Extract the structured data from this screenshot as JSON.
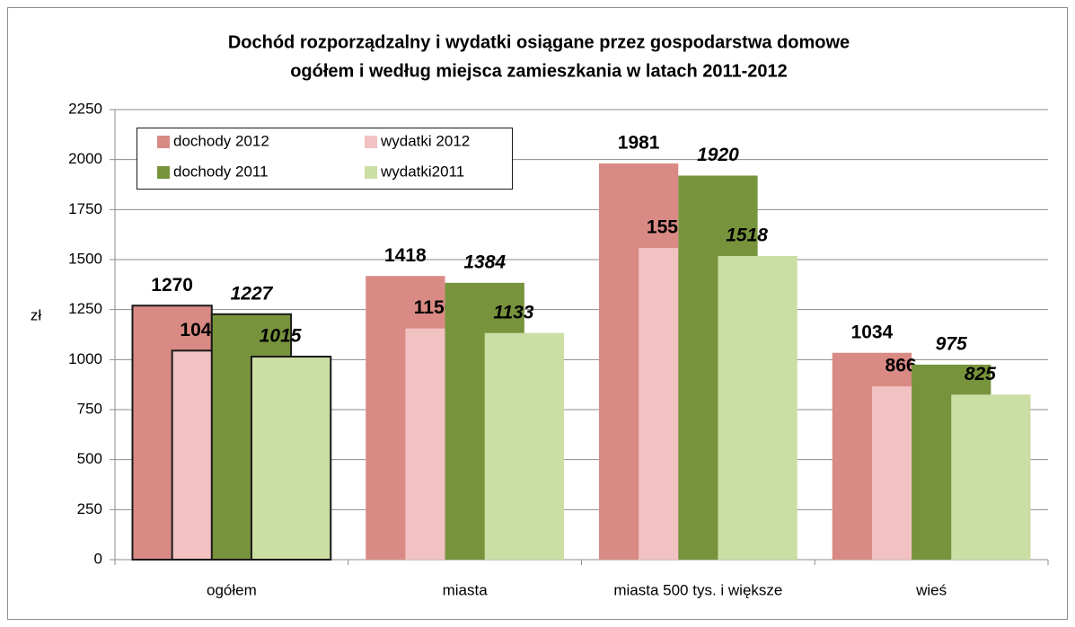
{
  "chart_data": {
    "type": "bar",
    "title": [
      "Dochód rozporządzalny i wydatki osiągane przez gospodarstwa domowe",
      "ogółem i według miejsca zamieszkania  w latach 2011-2012"
    ],
    "y_label": "zł",
    "categories": [
      "ogółem",
      "miasta",
      "miasta 500 tys. i większe",
      "wieś"
    ],
    "series": [
      {
        "name": "dochody 2012",
        "color": "#d98a84",
        "values": [
          1270,
          1418,
          1981,
          1034
        ]
      },
      {
        "name": "wydatki 2012",
        "color": "#f2c1c1",
        "values": [
          1045,
          1156,
          1558,
          866
        ]
      },
      {
        "name": "dochody 2011",
        "color": "#77943d",
        "values": [
          1227,
          1384,
          1920,
          975
        ]
      },
      {
        "name": "wydatki2011",
        "color": "#cbdea3",
        "values": [
          1015,
          1133,
          1518,
          825
        ]
      }
    ],
    "ylim": [
      0,
      2250
    ],
    "yticks": [
      0,
      250,
      500,
      750,
      1000,
      1250,
      1500,
      1750,
      2000,
      2250
    ],
    "grid": true,
    "legend": "top-left"
  }
}
